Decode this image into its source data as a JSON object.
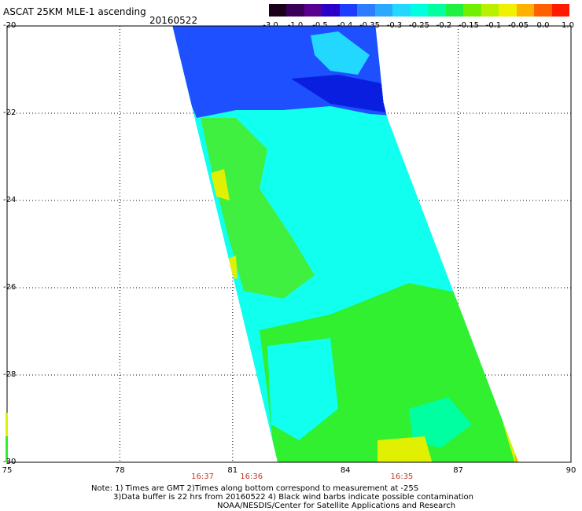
{
  "title": "ASCAT 25KM MLE-1 ascending",
  "date": "20160522",
  "colorbar": {
    "colors": [
      "#1a0018",
      "#3a0058",
      "#5a0090",
      "#2a00c8",
      "#1e3cff",
      "#2f7dff",
      "#2aaaff",
      "#22d8ff",
      "#00ffe0",
      "#00ffa0",
      "#20f040",
      "#70f000",
      "#b8f000",
      "#f0f000",
      "#ffb000",
      "#ff6000",
      "#ff1a00"
    ],
    "labels": [
      "-3.0",
      "-1.0",
      "-0.5",
      "-0.4",
      "-0.35",
      "-0.3",
      "-0.25",
      "-0.2",
      "-0.15",
      "-0.1",
      "-0.05",
      "0.0",
      "1.0"
    ]
  },
  "axes": {
    "lon_range": [
      75,
      90
    ],
    "lat_range": [
      -20,
      -30
    ],
    "x_ticks": [
      "75",
      "78",
      "81",
      "84",
      "87",
      "90"
    ],
    "y_ticks": [
      "-20",
      "-22",
      "-24",
      "-26",
      "-28",
      "-30"
    ]
  },
  "swath": {
    "top_edge_lon": [
      79.4,
      84.8
    ],
    "bottom_edge_lon": [
      82.2,
      88.6
    ],
    "regions": [
      {
        "name": "northern-blue",
        "color": "#1e50ff"
      },
      {
        "name": "deep-blue-core",
        "color": "#0a1ee0"
      },
      {
        "name": "cyan-center",
        "color": "#10ffee"
      },
      {
        "name": "green-west",
        "color": "#40f040"
      },
      {
        "name": "green-south",
        "color": "#30f030"
      },
      {
        "name": "yellow-southwest",
        "color": "#e0f000"
      }
    ]
  },
  "times": [
    {
      "label": "16:37",
      "lon": 80.2
    },
    {
      "label": "16:36",
      "lon": 81.5
    },
    {
      "label": "16:35",
      "lon": 85.5
    }
  ],
  "notes": [
    "Note: 1) Times are GMT 2)Times along bottom correspond to measurement at -25S",
    "3)Data buffer is 22 hrs from 20160522 4) Black wind barbs indicate possible contamination",
    "NOAA/NESDIS/Center for Satellite Applications and Research"
  ]
}
